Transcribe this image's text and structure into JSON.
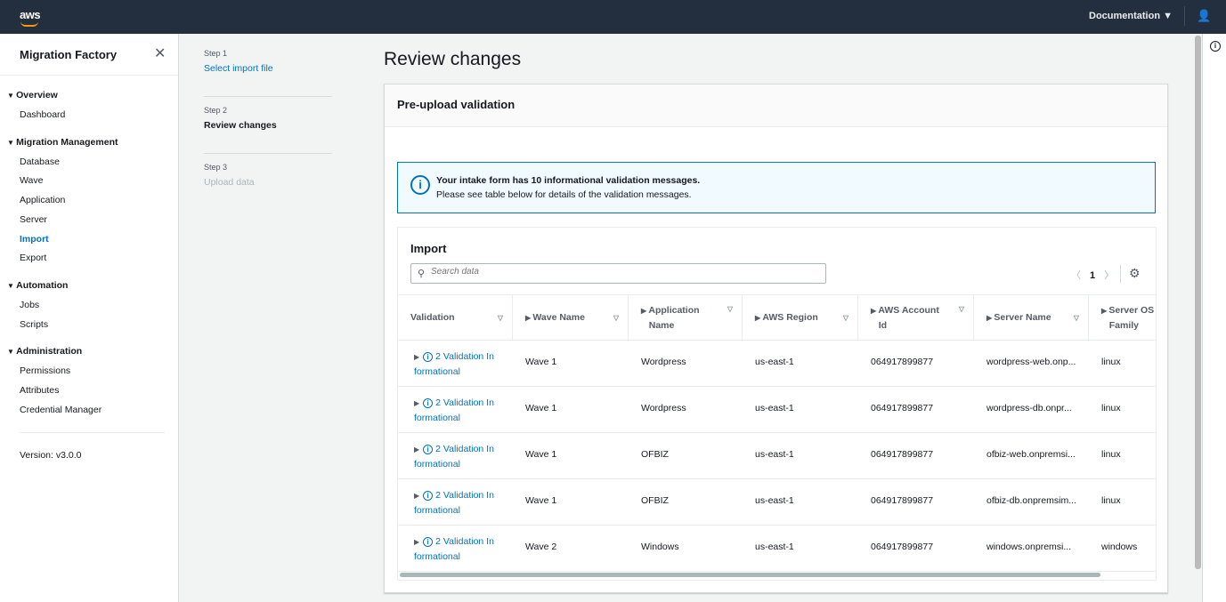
{
  "header": {
    "logo": "aws",
    "documentation": "Documentation ▼",
    "user_icon": "user-icon"
  },
  "sidebar": {
    "title": "Migration Factory",
    "sections": [
      {
        "label": "Overview",
        "items": [
          "Dashboard"
        ]
      },
      {
        "label": "Migration Management",
        "items": [
          "Database",
          "Wave",
          "Application",
          "Server",
          "Import",
          "Export"
        ]
      },
      {
        "label": "Automation",
        "items": [
          "Jobs",
          "Scripts"
        ]
      },
      {
        "label": "Administration",
        "items": [
          "Permissions",
          "Attributes",
          "Credential Manager"
        ]
      }
    ],
    "active": "Import",
    "version": "Version: v3.0.0"
  },
  "steps": [
    {
      "num": "Step 1",
      "label": "Select import file"
    },
    {
      "num": "Step 2",
      "label": "Review changes"
    },
    {
      "num": "Step 3",
      "label": "Upload data"
    }
  ],
  "page_title": "Review changes",
  "container": {
    "title": "Pre-upload validation"
  },
  "alert": {
    "title": "Your intake form has 10 informational validation messages.",
    "body": "Please see table below for details of the validation messages."
  },
  "table": {
    "title": "Import",
    "search_placeholder": "Search data",
    "page": "1",
    "columns": [
      "Validation",
      "Wave Name",
      "Application Name",
      "AWS Region",
      "AWS Account Id",
      "Server Name",
      "Server OS Family"
    ],
    "rows": [
      [
        "2 Validation Informational",
        "Wave 1",
        "Wordpress",
        "us-east-1",
        "064917899877",
        "wordpress-web.onp...",
        "linux"
      ],
      [
        "2 Validation Informational",
        "Wave 1",
        "Wordpress",
        "us-east-1",
        "064917899877",
        "wordpress-db.onpr...",
        "linux"
      ],
      [
        "2 Validation Informational",
        "Wave 1",
        "OFBIZ",
        "us-east-1",
        "064917899877",
        "ofbiz-web.onpremsi...",
        "linux"
      ],
      [
        "2 Validation Informational",
        "Wave 1",
        "OFBIZ",
        "us-east-1",
        "064917899877",
        "ofbiz-db.onpremsim...",
        "linux"
      ],
      [
        "2 Validation Informational",
        "Wave 2",
        "Windows",
        "us-east-1",
        "064917899877",
        "windows.onpremsi...",
        "windows"
      ]
    ]
  }
}
